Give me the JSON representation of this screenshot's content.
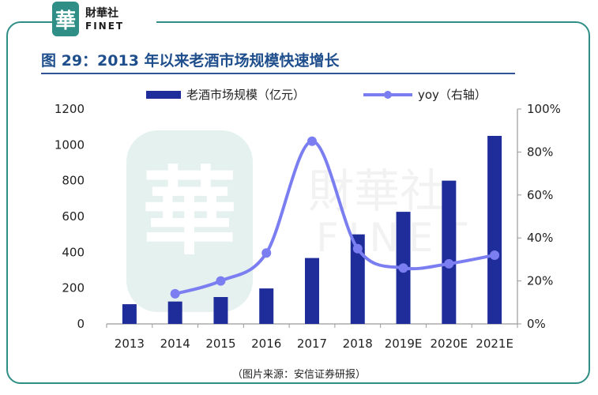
{
  "logo": {
    "mark": "華",
    "name_cn": "財華社",
    "name_en": "FINET"
  },
  "header": {
    "title": "图 29：2013 年以来老酒市场规模快速增长"
  },
  "watermark": {
    "mark": "華",
    "name_cn": "財華社",
    "name_en": "FINET"
  },
  "source": "（图片来源：安信证券研报）",
  "colors": {
    "bar": "#1f2d9a",
    "line": "#7b7ef0",
    "frame": "#2f8f86",
    "title": "#1f4e8c"
  },
  "chart_data": {
    "type": "bar",
    "categories": [
      "2013",
      "2014",
      "2015",
      "2016",
      "2017",
      "2018",
      "2019E",
      "2020E",
      "2021E"
    ],
    "series": [
      {
        "name": "老酒市场规模（亿元）",
        "axis": "left",
        "type": "bar",
        "values": [
          110,
          125,
          150,
          198,
          368,
          500,
          626,
          800,
          1050
        ]
      },
      {
        "name": "yoy（右轴）",
        "axis": "right",
        "type": "line",
        "values": [
          null,
          0.14,
          0.2,
          0.33,
          0.85,
          0.35,
          0.26,
          0.28,
          0.32
        ]
      }
    ],
    "y_left": {
      "min": 0,
      "max": 1200,
      "ticks": [
        "0",
        "200",
        "400",
        "600",
        "800",
        "1000",
        "1200"
      ]
    },
    "y_right": {
      "min": 0,
      "max": 1,
      "ticks": [
        "0%",
        "20%",
        "40%",
        "60%",
        "80%",
        "100%"
      ]
    },
    "legend": "top",
    "grid": false
  }
}
